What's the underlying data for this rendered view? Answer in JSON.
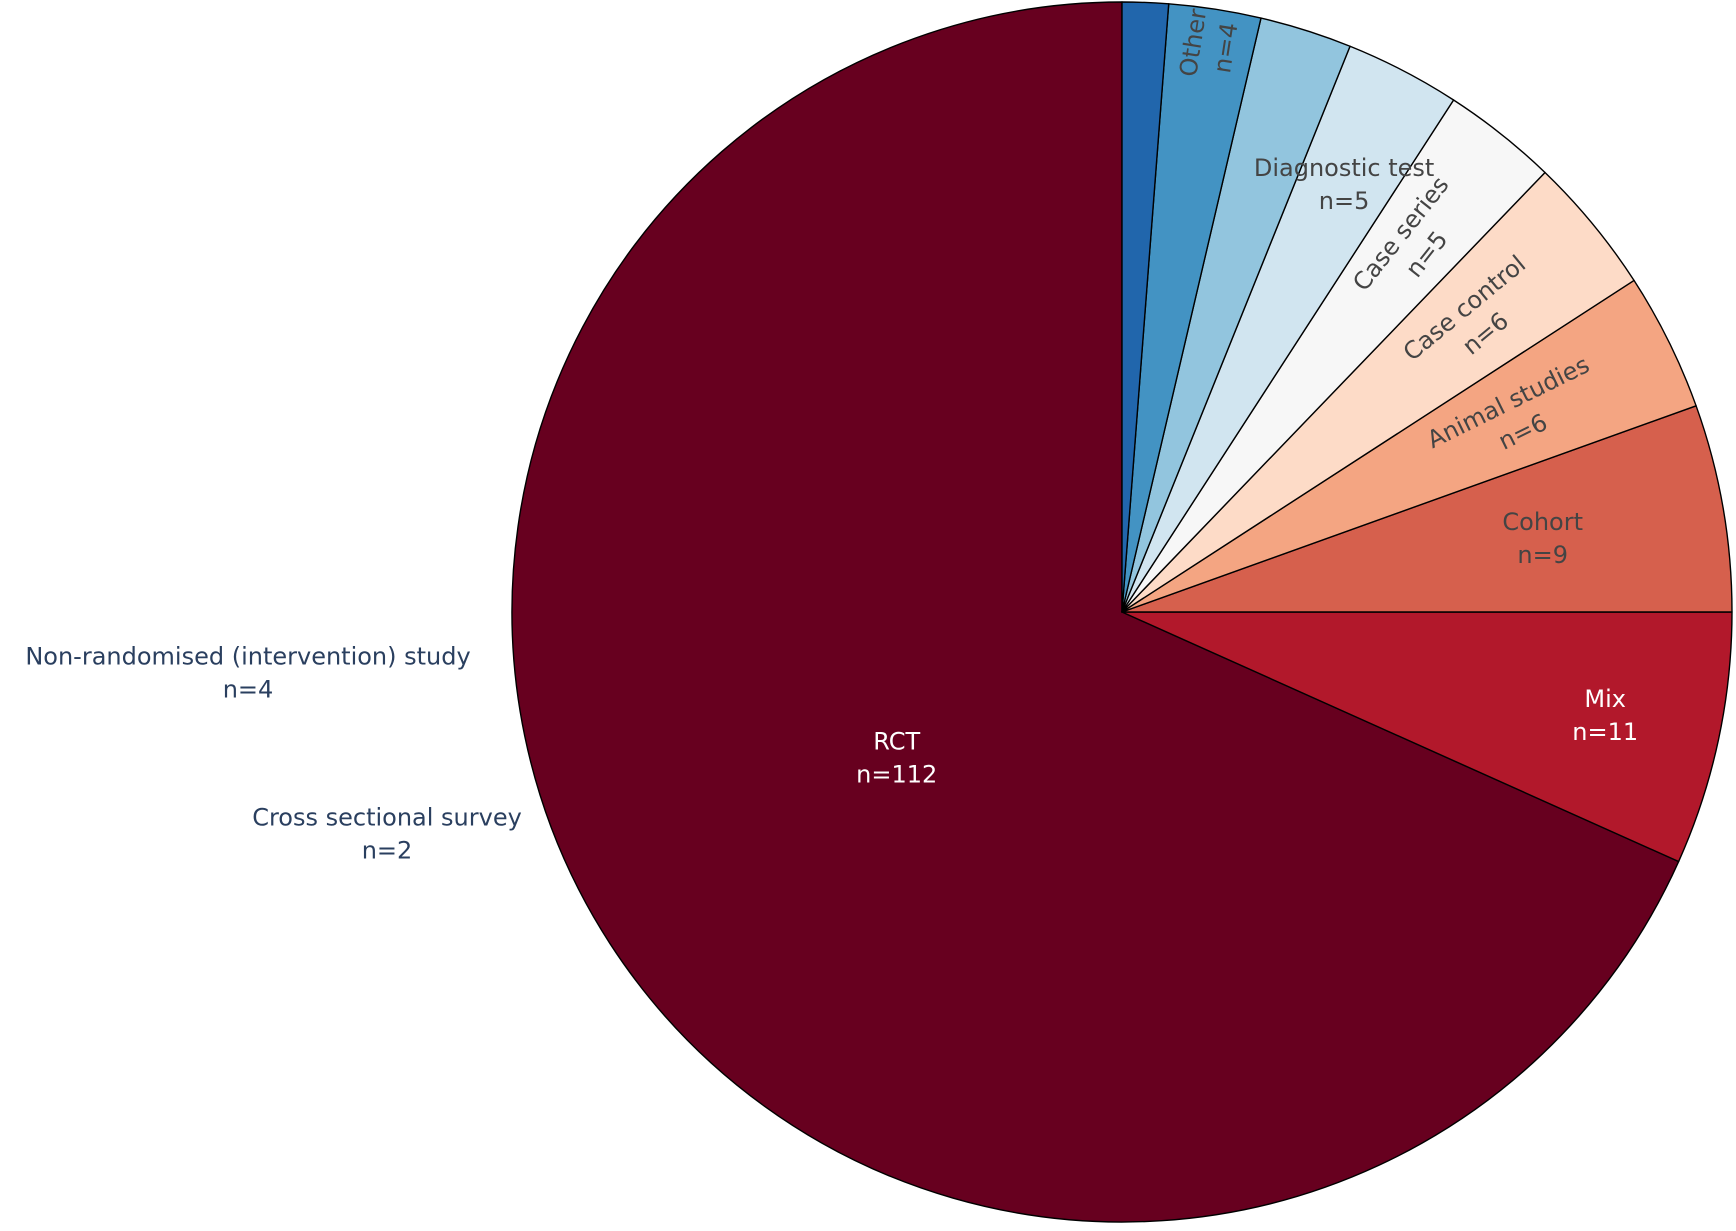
{
  "chart_data": {
    "type": "pie",
    "title": "",
    "slices": [
      {
        "label": "RCT",
        "count_text": "n=112",
        "value": 112,
        "color": "#67001f",
        "label_color": "#ffffff"
      },
      {
        "label": "Mix",
        "count_text": "n=11",
        "value": 11,
        "color": "#b2182b",
        "label_color": "#ffffff"
      },
      {
        "label": "Cohort",
        "count_text": "n=9",
        "value": 9,
        "color": "#d6604d",
        "label_color": "#444444"
      },
      {
        "label": "Animal studies",
        "count_text": "n=6",
        "value": 6,
        "color": "#f4a582",
        "label_color": "#444444"
      },
      {
        "label": "Case control",
        "count_text": "n=6",
        "value": 6,
        "color": "#fddbc7",
        "label_color": "#444444"
      },
      {
        "label": "Case series",
        "count_text": "n=5",
        "value": 5,
        "color": "#f7f7f7",
        "label_color": "#444444"
      },
      {
        "label": "Diagnostic test",
        "count_text": "n=5",
        "value": 5,
        "color": "#d1e5f0",
        "label_color": "#444444"
      },
      {
        "label": "Non-randomised (intervention) study",
        "count_text": "n=4",
        "value": 4,
        "color": "#92c5de",
        "label_color": "#2a3f5f"
      },
      {
        "label": "Other",
        "count_text": "n=4",
        "value": 4,
        "color": "#4393c3",
        "label_color": "#444444"
      },
      {
        "label": "Cross sectional survey",
        "count_text": "n=2",
        "value": 2,
        "color": "#2166ac",
        "label_color": "#2a3f5f"
      }
    ],
    "direction": "counterclockwise",
    "start": "top",
    "sort": "descending",
    "legend": "none"
  }
}
